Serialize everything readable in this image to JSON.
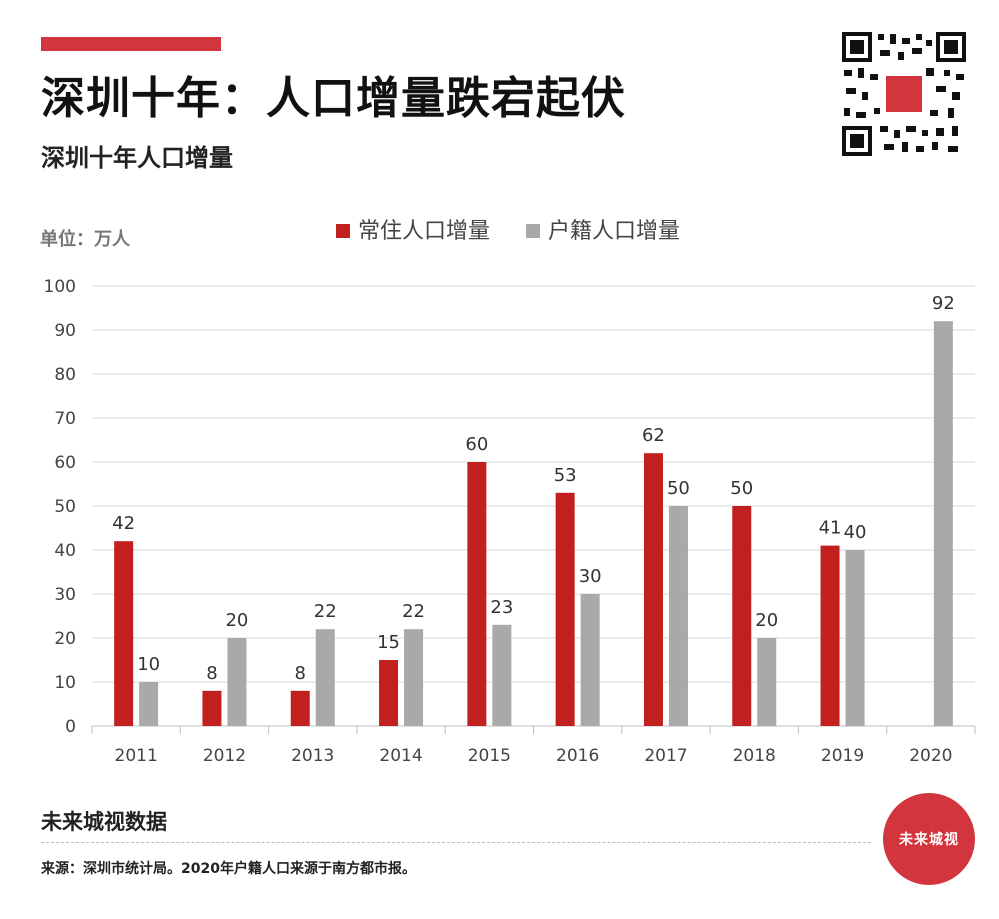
{
  "header": {
    "title": "深圳十年：人口增量跌宕起伏",
    "subtitle": "深圳十年人口增量"
  },
  "qr_icon": "qr-code-icon",
  "unit_label": "单位：万人",
  "colors": {
    "resident": "#c1201f",
    "registered": "#a9a9a9",
    "accent": "#d3353e"
  },
  "chart_data": {
    "type": "bar",
    "categories": [
      "2011",
      "2012",
      "2013",
      "2014",
      "2015",
      "2016",
      "2017",
      "2018",
      "2019",
      "2020"
    ],
    "series": [
      {
        "name": "常住人口增量",
        "values": [
          42,
          8,
          8,
          15,
          60,
          53,
          62,
          50,
          41,
          null
        ]
      },
      {
        "name": "户籍人口增量",
        "values": [
          10,
          20,
          22,
          22,
          23,
          30,
          50,
          20,
          40,
          92
        ]
      }
    ],
    "ylim": [
      0,
      100
    ],
    "yticks": [
      0,
      10,
      20,
      30,
      40,
      50,
      60,
      70,
      80,
      90,
      100
    ],
    "grid": true,
    "legend": "top-center"
  },
  "footer": {
    "brand": "未来城视数据",
    "source": "来源：深圳市统计局。2020年户籍人口来源于南方都市报。",
    "badge_text": "未来城视"
  }
}
